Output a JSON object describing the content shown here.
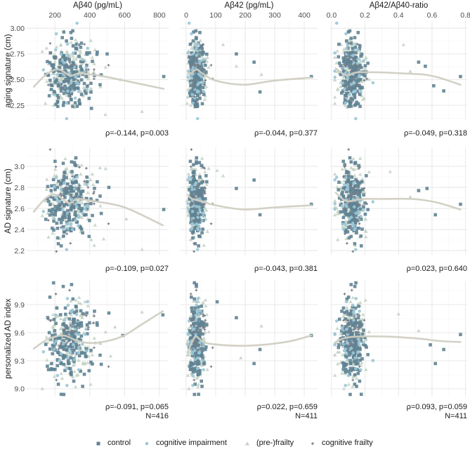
{
  "legend": {
    "items": [
      {
        "label": "control",
        "color": "#5f8393",
        "shape": "square"
      },
      {
        "label": "cognitive impairment",
        "color": "#9cc6d6",
        "shape": "circle"
      },
      {
        "label": "(pre-)frailty",
        "color": "#c3d2c4",
        "shape": "triangle"
      },
      {
        "label": "cognitive frailty",
        "color": "#7a7c88",
        "shape": "plus"
      }
    ]
  },
  "chart_data": {
    "type": "scatter",
    "layout": "facet-grid 3 rows x 3 columns",
    "smooth_color": "#d1cfc3",
    "grid": true,
    "legend_position": "bottom",
    "columns": [
      {
        "title": "Aβ40 (pg/mL)",
        "xlim": [
          38,
          853
        ],
        "ticks": [
          200,
          400,
          600,
          800
        ],
        "tick_labels": [
          "200",
          "400",
          "600",
          "800"
        ],
        "minor": [
          100,
          300,
          500,
          700
        ]
      },
      {
        "title": "Aβ42 (pg/mL)",
        "xlim": [
          -19,
          445
        ],
        "ticks": [
          0,
          100,
          200,
          300,
          400
        ],
        "tick_labels": [
          "0",
          "100",
          "200",
          "300",
          "400"
        ],
        "minor": [
          50,
          150,
          250,
          350
        ]
      },
      {
        "title": "Aβ42/Aβ40-ratio",
        "xlim": [
          -0.008,
          0.81
        ],
        "ticks": [
          0,
          0.2,
          0.4,
          0.6,
          0.8
        ],
        "tick_labels": [
          "0.0",
          "0.2",
          "0.4",
          "0.6",
          "0.8"
        ],
        "minor": [
          0.1,
          0.3,
          0.5,
          0.7
        ]
      }
    ],
    "rows": [
      {
        "ylabel": "aging signature (cm)",
        "ylim": [
          2.1,
          3.07
        ],
        "ticks": [
          2.25,
          2.5,
          2.75,
          3.0
        ],
        "tick_labels": [
          "2.25",
          "2.50",
          "2.75",
          "3.00"
        ],
        "minor": [
          2.125,
          2.375,
          2.625,
          2.875
        ]
      },
      {
        "ylabel": "AD signature (cm)",
        "ylim": [
          2.16,
          3.18
        ],
        "ticks": [
          2.2,
          2.4,
          2.6,
          2.8,
          3.0
        ],
        "tick_labels": [
          "2.2",
          "2.4",
          "2.6",
          "2.8",
          "3.0"
        ],
        "minor": [
          2.3,
          2.5,
          2.7,
          2.9,
          3.1
        ]
      },
      {
        "ylabel": "personalized AD index",
        "ylim": [
          8.917,
          10.155
        ],
        "ticks": [
          9.0,
          9.3,
          9.6,
          9.9
        ],
        "tick_labels": [
          "9.0",
          "9.3",
          "9.6",
          "9.9"
        ],
        "minor": [
          9.15,
          9.45,
          9.75,
          10.05
        ]
      }
    ],
    "panels": [
      [
        {
          "stat": "ρ=-0.144, p=0.003",
          "smooth": [
            [
              79,
              2.43
            ],
            [
              150,
              2.55
            ],
            [
              220,
              2.6
            ],
            [
              288,
              2.54
            ],
            [
              341,
              2.56
            ],
            [
              450,
              2.54
            ],
            [
              600,
              2.49
            ],
            [
              825,
              2.41
            ]
          ],
          "outliers": [
            [
              825,
              2.53,
              0
            ],
            [
              700,
              2.19,
              2
            ],
            [
              500,
              2.75,
              0
            ],
            [
              410,
              2.22,
              0
            ],
            [
              580,
              2.5,
              2
            ],
            [
              490,
              2.16,
              2
            ]
          ]
        },
        {
          "stat": "ρ=-0.044, p=0.377",
          "smooth": [
            [
              5,
              2.55
            ],
            [
              20,
              2.57
            ],
            [
              36,
              2.6
            ],
            [
              55,
              2.56
            ],
            [
              100,
              2.49
            ],
            [
              195,
              2.45
            ],
            [
              298,
              2.49
            ],
            [
              424,
              2.52
            ]
          ],
          "outliers": [
            [
              424,
              2.53,
              0
            ],
            [
              250,
              2.38,
              0
            ],
            [
              230,
              2.67,
              0
            ],
            [
              170,
              2.75,
              0
            ],
            [
              255,
              2.55,
              2
            ],
            [
              125,
              2.84,
              2
            ],
            [
              170,
              2.63,
              2
            ]
          ]
        },
        {
          "stat": "ρ=-0.049, p=0.318",
          "smooth": [
            [
              0.025,
              2.61
            ],
            [
              0.09,
              2.54
            ],
            [
              0.15,
              2.57
            ],
            [
              0.3,
              2.57
            ],
            [
              0.43,
              2.56
            ],
            [
              0.55,
              2.55
            ],
            [
              0.64,
              2.52
            ],
            [
              0.77,
              2.45
            ]
          ],
          "outliers": [
            [
              0.77,
              2.53,
              0
            ],
            [
              0.67,
              2.39,
              0
            ],
            [
              0.61,
              2.44,
              0
            ],
            [
              0.56,
              2.63,
              0
            ],
            [
              0.52,
              2.67,
              0
            ],
            [
              0.43,
              2.84,
              2
            ],
            [
              0.47,
              2.58,
              2
            ]
          ]
        }
      ],
      [
        {
          "stat": "ρ=-0.109, p=0.027",
          "smooth": [
            [
              79,
              2.57
            ],
            [
              150,
              2.7
            ],
            [
              208,
              2.73
            ],
            [
              280,
              2.65
            ],
            [
              329,
              2.69
            ],
            [
              422,
              2.67
            ],
            [
              600,
              2.61
            ],
            [
              820,
              2.44
            ]
          ],
          "outliers": [
            [
              825,
              2.59,
              0
            ],
            [
              700,
              2.21,
              2
            ],
            [
              510,
              2.8,
              0
            ],
            [
              610,
              2.5,
              2
            ],
            [
              480,
              2.31,
              2
            ]
          ]
        },
        {
          "stat": "ρ=-0.043, p=0.381",
          "smooth": [
            [
              5,
              2.73
            ],
            [
              20,
              2.69
            ],
            [
              36,
              2.68
            ],
            [
              60,
              2.66
            ],
            [
              100,
              2.63
            ],
            [
              195,
              2.59
            ],
            [
              298,
              2.61
            ],
            [
              424,
              2.63
            ]
          ],
          "outliers": [
            [
              424,
              2.64,
              0
            ],
            [
              250,
              2.54,
              0
            ],
            [
              230,
              2.87,
              0
            ],
            [
              170,
              2.79,
              0
            ],
            [
              105,
              2.96,
              2
            ],
            [
              125,
              2.91,
              2
            ]
          ]
        },
        {
          "stat": "ρ=0.023, p=0.640",
          "smooth": [
            [
              0.025,
              2.75
            ],
            [
              0.09,
              2.67
            ],
            [
              0.18,
              2.69
            ],
            [
              0.3,
              2.69
            ],
            [
              0.48,
              2.69
            ],
            [
              0.62,
              2.66
            ],
            [
              0.77,
              2.59
            ]
          ],
          "outliers": [
            [
              0.77,
              2.64,
              0
            ],
            [
              0.62,
              2.54,
              0
            ],
            [
              0.57,
              2.79,
              0
            ],
            [
              0.52,
              2.77,
              0
            ],
            [
              0.35,
              2.95,
              2
            ],
            [
              0.47,
              2.71,
              2
            ]
          ]
        }
      ],
      [
        {
          "stat": "ρ=-0.091, p=0.065",
          "n": "N=416",
          "smooth": [
            [
              79,
              9.43
            ],
            [
              160,
              9.53
            ],
            [
              248,
              9.57
            ],
            [
              320,
              9.52
            ],
            [
              397,
              9.49
            ],
            [
              500,
              9.51
            ],
            [
              598,
              9.57
            ],
            [
              700,
              9.69
            ],
            [
              820,
              9.83
            ]
          ],
          "outliers": [
            [
              820,
              9.79,
              0
            ],
            [
              700,
              9.82,
              2
            ],
            [
              510,
              9.81,
              0
            ],
            [
              590,
              9.57,
              0
            ],
            [
              545,
              9.66,
              2
            ],
            [
              520,
              9.35,
              2
            ]
          ]
        },
        {
          "stat": "ρ=0.022, p=0.659",
          "n": "N=411",
          "smooth": [
            [
              5,
              9.39
            ],
            [
              20,
              9.5
            ],
            [
              33,
              9.56
            ],
            [
              50,
              9.52
            ],
            [
              84,
              9.48
            ],
            [
              203,
              9.46
            ],
            [
              337,
              9.5
            ],
            [
              424,
              9.57
            ]
          ],
          "outliers": [
            [
              424,
              9.57,
              0
            ],
            [
              250,
              9.42,
              0
            ],
            [
              230,
              9.27,
              0
            ],
            [
              170,
              9.76,
              0
            ],
            [
              105,
              9.93,
              0
            ],
            [
              255,
              9.67,
              2
            ],
            [
              185,
              9.33,
              2
            ]
          ]
        },
        {
          "stat": "ρ=0.093, p=0.059",
          "n": "N=411",
          "smooth": [
            [
              0.025,
              9.5
            ],
            [
              0.1,
              9.55
            ],
            [
              0.29,
              9.56
            ],
            [
              0.5,
              9.54
            ],
            [
              0.65,
              9.51
            ],
            [
              0.77,
              9.5
            ]
          ],
          "outliers": [
            [
              0.77,
              9.58,
              0
            ],
            [
              0.67,
              9.42,
              0
            ],
            [
              0.62,
              9.27,
              0
            ],
            [
              0.59,
              9.47,
              0
            ],
            [
              0.4,
              9.8,
              2
            ],
            [
              0.52,
              9.62,
              2
            ]
          ]
        }
      ]
    ],
    "bulk_points": {
      "note_n": 416,
      "group_shares": [
        0.47,
        0.07,
        0.39,
        0.07
      ],
      "abeta40": {
        "mean": 285,
        "sd": 70
      },
      "ratio": {
        "mean": 0.12,
        "sd": 0.04
      },
      "y": [
        {
          "mean": 2.57,
          "sd": 0.15
        },
        {
          "mean": 2.68,
          "sd": 0.17
        },
        {
          "mean": 9.55,
          "sd": 0.21
        }
      ]
    }
  }
}
